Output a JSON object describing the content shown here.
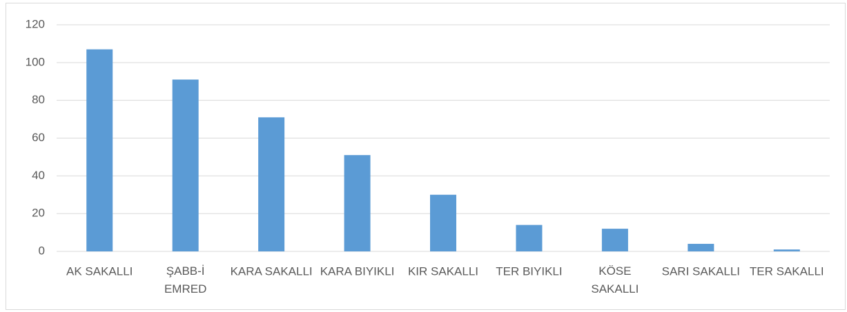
{
  "chart_data": {
    "type": "bar",
    "categories": [
      "AK SAKALLI",
      "ŞABB-İ EMRED",
      "KARA SAKALLI",
      "KARA BIYIKLI",
      "KIR SAKALLI",
      "TER BIYIKLI",
      "KÖSE SAKALLI",
      "SARI SAKALLI",
      "TER SAKALLI"
    ],
    "values": [
      107,
      91,
      71,
      51,
      30,
      14,
      12,
      4,
      1
    ],
    "color": "#5b9bd5",
    "ylim": [
      0,
      120
    ],
    "yticks": [
      0,
      20,
      40,
      60,
      80,
      100,
      120
    ],
    "grid": true
  }
}
